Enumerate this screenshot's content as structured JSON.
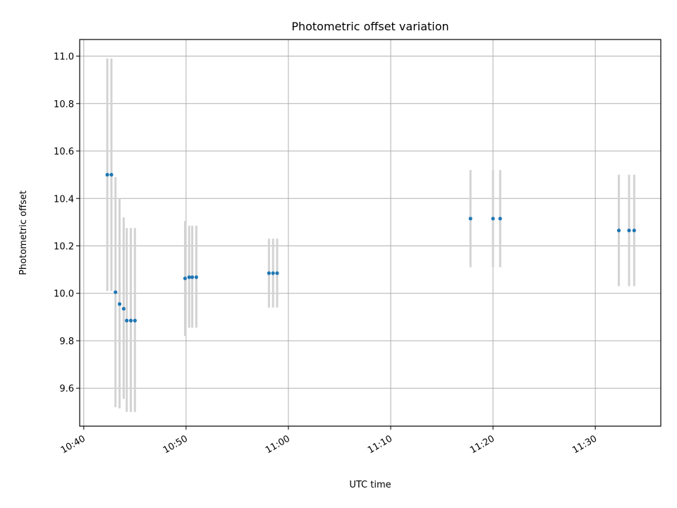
{
  "chart_data": {
    "type": "scatter",
    "title": "Photometric offset variation",
    "xlabel": "UTC time",
    "ylabel": "Photometric offset",
    "xlim": [
      "10:39.6",
      "11:36.4"
    ],
    "ylim": [
      9.44,
      11.07
    ],
    "grid": true,
    "x_ticks": [
      "10:40",
      "10:50",
      "11:00",
      "11:10",
      "11:20",
      "11:30"
    ],
    "y_ticks": [
      "9.6",
      "9.8",
      "10.0",
      "10.2",
      "10.4",
      "10.6",
      "10.8",
      "11.0"
    ],
    "marker_color": "#1f77b4",
    "errorbar_color": "#d3d3d3",
    "points": [
      {
        "time": "10:42.3",
        "y": 10.5,
        "ylow": 10.01,
        "yhigh": 10.99
      },
      {
        "time": "10:42.7",
        "y": 10.5,
        "ylow": 10.01,
        "yhigh": 10.99
      },
      {
        "time": "10:43.1",
        "y": 10.005,
        "ylow": 9.52,
        "yhigh": 10.49
      },
      {
        "time": "10:43.5",
        "y": 9.955,
        "ylow": 9.515,
        "yhigh": 10.4
      },
      {
        "time": "10:43.9",
        "y": 9.935,
        "ylow": 9.555,
        "yhigh": 10.32
      },
      {
        "time": "10:44.2",
        "y": 9.885,
        "ylow": 9.5,
        "yhigh": 10.275
      },
      {
        "time": "10:44.6",
        "y": 9.885,
        "ylow": 9.5,
        "yhigh": 10.275
      },
      {
        "time": "10:45.0",
        "y": 9.885,
        "ylow": 9.5,
        "yhigh": 10.275
      },
      {
        "time": "10:49.9",
        "y": 10.063,
        "ylow": 9.82,
        "yhigh": 10.305
      },
      {
        "time": "10:50.3",
        "y": 10.068,
        "ylow": 9.855,
        "yhigh": 10.285
      },
      {
        "time": "10:50.6",
        "y": 10.068,
        "ylow": 9.855,
        "yhigh": 10.285
      },
      {
        "time": "10:51.0",
        "y": 10.068,
        "ylow": 9.855,
        "yhigh": 10.285
      },
      {
        "time": "10:58.1",
        "y": 10.085,
        "ylow": 9.94,
        "yhigh": 10.23
      },
      {
        "time": "10:58.5",
        "y": 10.085,
        "ylow": 9.94,
        "yhigh": 10.23
      },
      {
        "time": "10:58.9",
        "y": 10.085,
        "ylow": 9.94,
        "yhigh": 10.23
      },
      {
        "time": "11:17.8",
        "y": 10.315,
        "ylow": 10.11,
        "yhigh": 10.52
      },
      {
        "time": "11:20.0",
        "y": 10.315,
        "ylow": 10.11,
        "yhigh": 10.52
      },
      {
        "time": "11:20.7",
        "y": 10.315,
        "ylow": 10.11,
        "yhigh": 10.52
      },
      {
        "time": "11:32.3",
        "y": 10.265,
        "ylow": 10.03,
        "yhigh": 10.5
      },
      {
        "time": "11:33.3",
        "y": 10.265,
        "ylow": 10.03,
        "yhigh": 10.5
      },
      {
        "time": "11:33.8",
        "y": 10.265,
        "ylow": 10.03,
        "yhigh": 10.5
      }
    ]
  }
}
